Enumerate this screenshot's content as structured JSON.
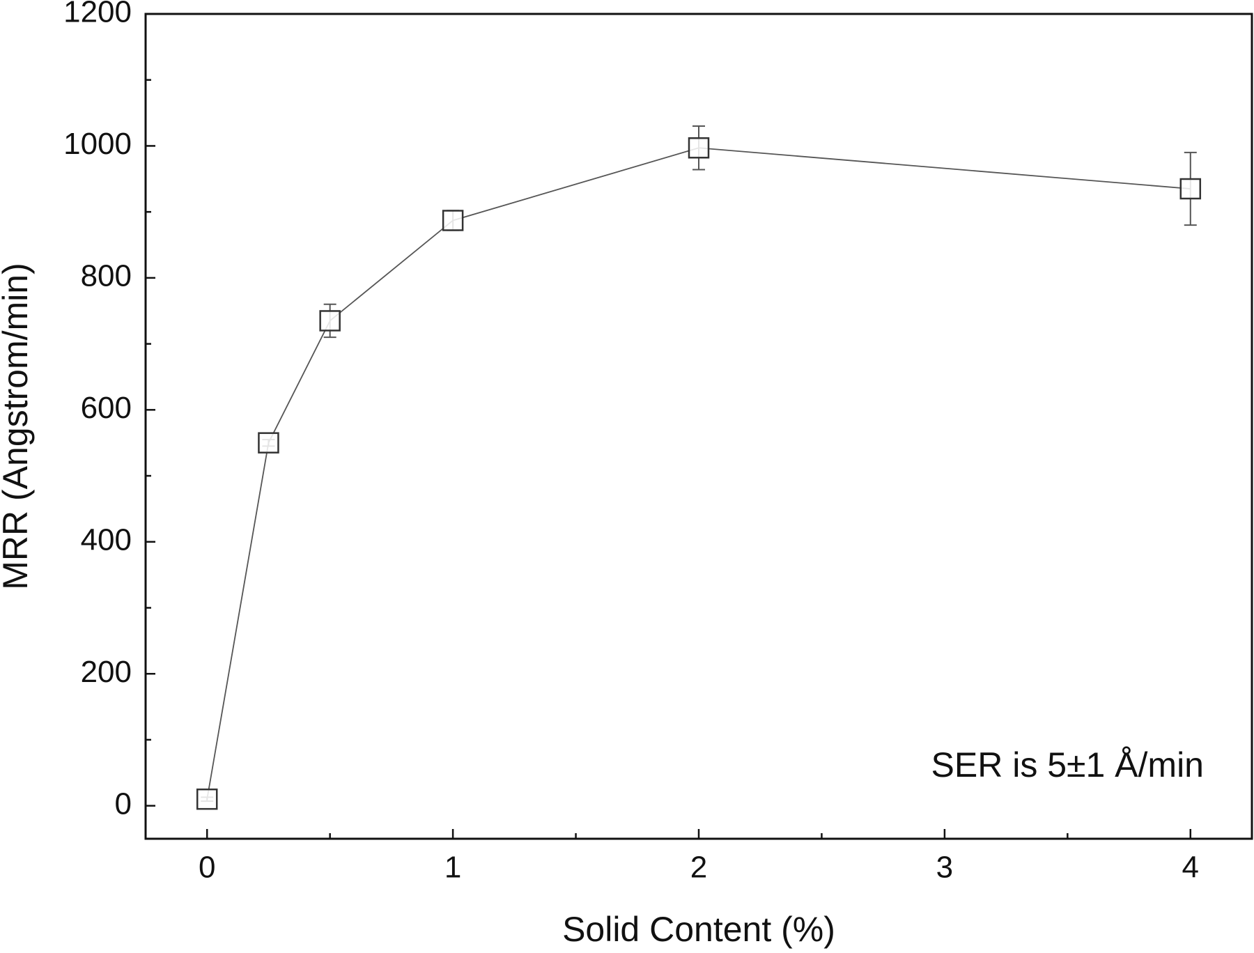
{
  "chart_data": {
    "type": "line",
    "x_label": "Solid Content (%)",
    "y_label": "MRR (Angstrom/min)",
    "annotation": "SER is 5±1 Å/min",
    "x": [
      0,
      0.25,
      0.5,
      1,
      2,
      4
    ],
    "series": [
      {
        "color": "#333333",
        "marker": "square",
        "values": [
          10,
          550,
          735,
          887,
          997,
          935
        ],
        "errors": [
          3,
          5,
          25,
          15,
          33,
          55
        ]
      }
    ],
    "xlim": [
      -0.25,
      4.25
    ],
    "xticks": [
      0,
      1,
      2,
      3,
      4
    ],
    "xminorticks": [
      0.5,
      1.5,
      2.5,
      3.5
    ],
    "ylim": [
      -50,
      1200
    ],
    "yticks": [
      0,
      200,
      400,
      600,
      800,
      1000,
      1200
    ],
    "yminorticks": [
      100,
      300,
      500,
      700,
      900,
      1100
    ],
    "grid": false
  }
}
